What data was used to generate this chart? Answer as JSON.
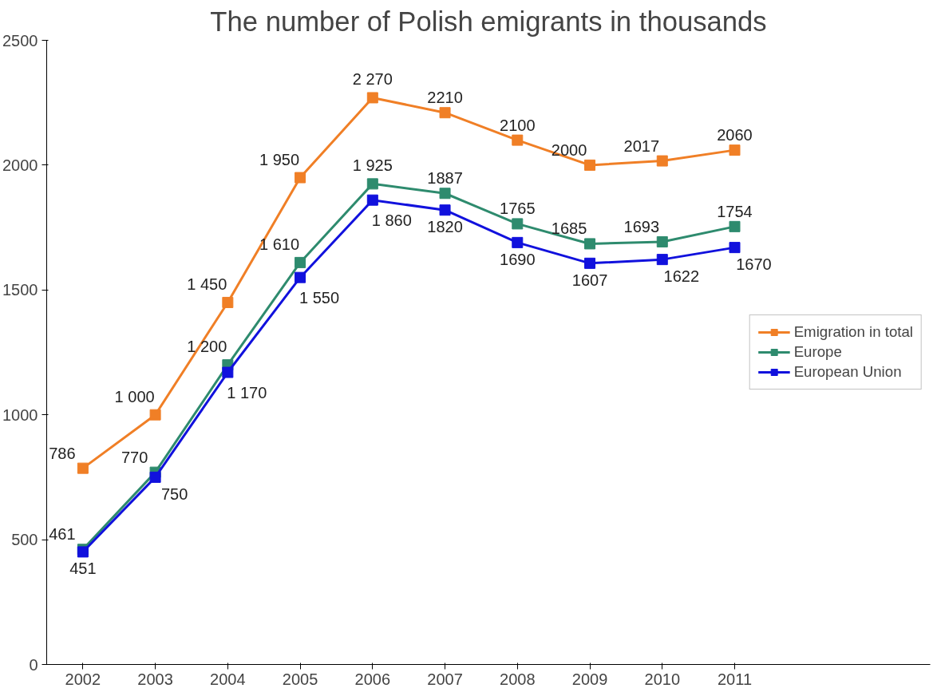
{
  "chart_data": {
    "type": "line",
    "title": "The number of Polish emigrants in thousands",
    "categories": [
      "2002",
      "2003",
      "2004",
      "2005",
      "2006",
      "2007",
      "2008",
      "2009",
      "2010",
      "2011"
    ],
    "series": [
      {
        "name": "Emigration in total",
        "color": "#f07f26",
        "values": [
          786,
          1000,
          1450,
          1950,
          2270,
          2210,
          2100,
          2000,
          2017,
          2060
        ],
        "value_labels": [
          "786",
          "1 000",
          "1 450",
          "1 950",
          "2 270",
          "2210",
          "2100",
          "2000",
          "2017",
          "2060"
        ]
      },
      {
        "name": "Europe",
        "color": "#2e8b6e",
        "values": [
          461,
          770,
          1200,
          1610,
          1925,
          1887,
          1765,
          1685,
          1693,
          1754
        ],
        "value_labels": [
          "461",
          "770",
          "1 200",
          "1 610",
          "1 925",
          "1887",
          "1765",
          "1685",
          "1693",
          "1754"
        ]
      },
      {
        "name": "European Union",
        "color": "#1111dd",
        "values": [
          451,
          750,
          1170,
          1550,
          1860,
          1820,
          1690,
          1607,
          1622,
          1670
        ],
        "value_labels": [
          "451",
          "750",
          "1 170",
          "1 550",
          "1 860",
          "1820",
          "1690",
          "1607",
          "1622",
          "1670"
        ]
      }
    ],
    "ylim": [
      0,
      2500
    ],
    "yticks": [
      0,
      500,
      1000,
      1500,
      2000,
      2500
    ],
    "grid": false,
    "legend": "right",
    "marker": "square",
    "line_style": "solid"
  }
}
